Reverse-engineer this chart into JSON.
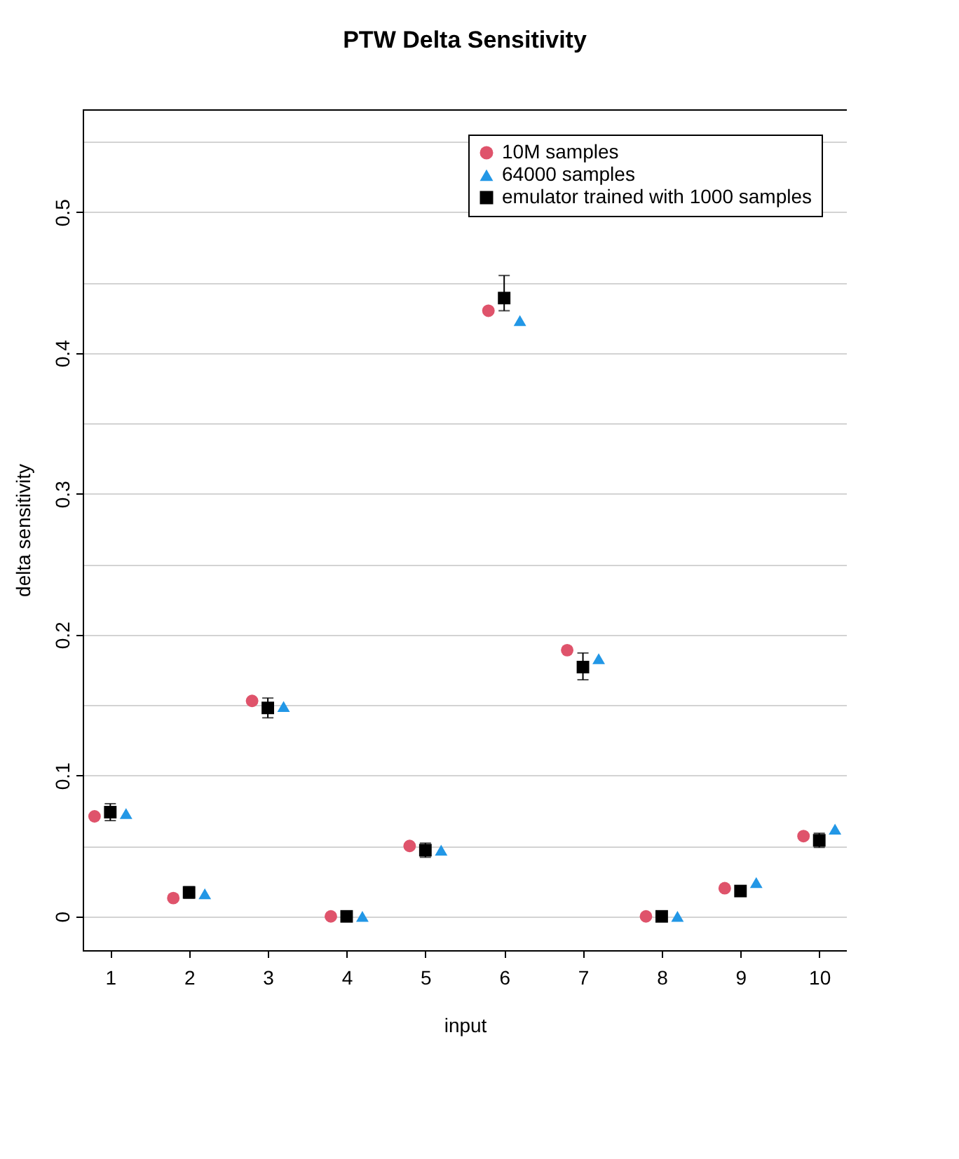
{
  "chart_data": {
    "type": "scatter",
    "title": "PTW Delta Sensitivity",
    "xlabel": "input",
    "ylabel": "delta sensitivity",
    "xlim": [
      0.65,
      10.35
    ],
    "xticks": [
      1,
      2,
      3,
      4,
      5,
      6,
      7,
      8,
      9,
      10
    ],
    "ylim": [
      -0.024,
      0.573
    ],
    "yticks": [
      0,
      {
        "value": 0.05,
        "label": null
      },
      0.1,
      {
        "value": 0.15,
        "label": null
      },
      0.2,
      {
        "value": 0.25,
        "label": null
      },
      0.3,
      {
        "value": 0.35,
        "label": null
      },
      0.4,
      {
        "value": 0.45,
        "label": null
      },
      0.5,
      {
        "value": 0.55,
        "label": null
      }
    ],
    "grid": "y",
    "legend": "top right",
    "series": [
      {
        "name": "10M samples",
        "color": "#df536b",
        "marker": "circle",
        "x": [
          0.8,
          1.8,
          2.8,
          3.8,
          4.8,
          5.8,
          6.8,
          7.8,
          8.8,
          9.8
        ],
        "values": [
          0.071,
          0.013,
          0.153,
          0.0,
          0.05,
          0.43,
          0.189,
          0.0,
          0.02,
          0.057
        ]
      },
      {
        "name": "64000 samples",
        "color": "#2297e6",
        "marker": "triangle",
        "x": [
          1.2,
          2.2,
          3.2,
          4.2,
          5.2,
          6.2,
          7.2,
          8.2,
          9.2,
          10.2
        ],
        "values": [
          0.073,
          0.016,
          0.149,
          0.0,
          0.047,
          0.423,
          0.183,
          0.0,
          0.024,
          0.062
        ]
      },
      {
        "name": "emulator trained with 1000 samples",
        "color": "#000000",
        "marker": "square",
        "x": [
          1,
          2,
          3,
          4,
          5,
          6,
          7,
          8,
          9,
          10
        ],
        "values": [
          0.074,
          0.017,
          0.148,
          0.0,
          0.047,
          0.439,
          0.177,
          0.0,
          0.018,
          0.054
        ],
        "errors": [
          0.006,
          0.004,
          0.007,
          null,
          0.005,
          [
            0.43,
            0.455
          ],
          [
            0.168,
            0.187
          ],
          null,
          0.003,
          0.005
        ]
      }
    ]
  }
}
